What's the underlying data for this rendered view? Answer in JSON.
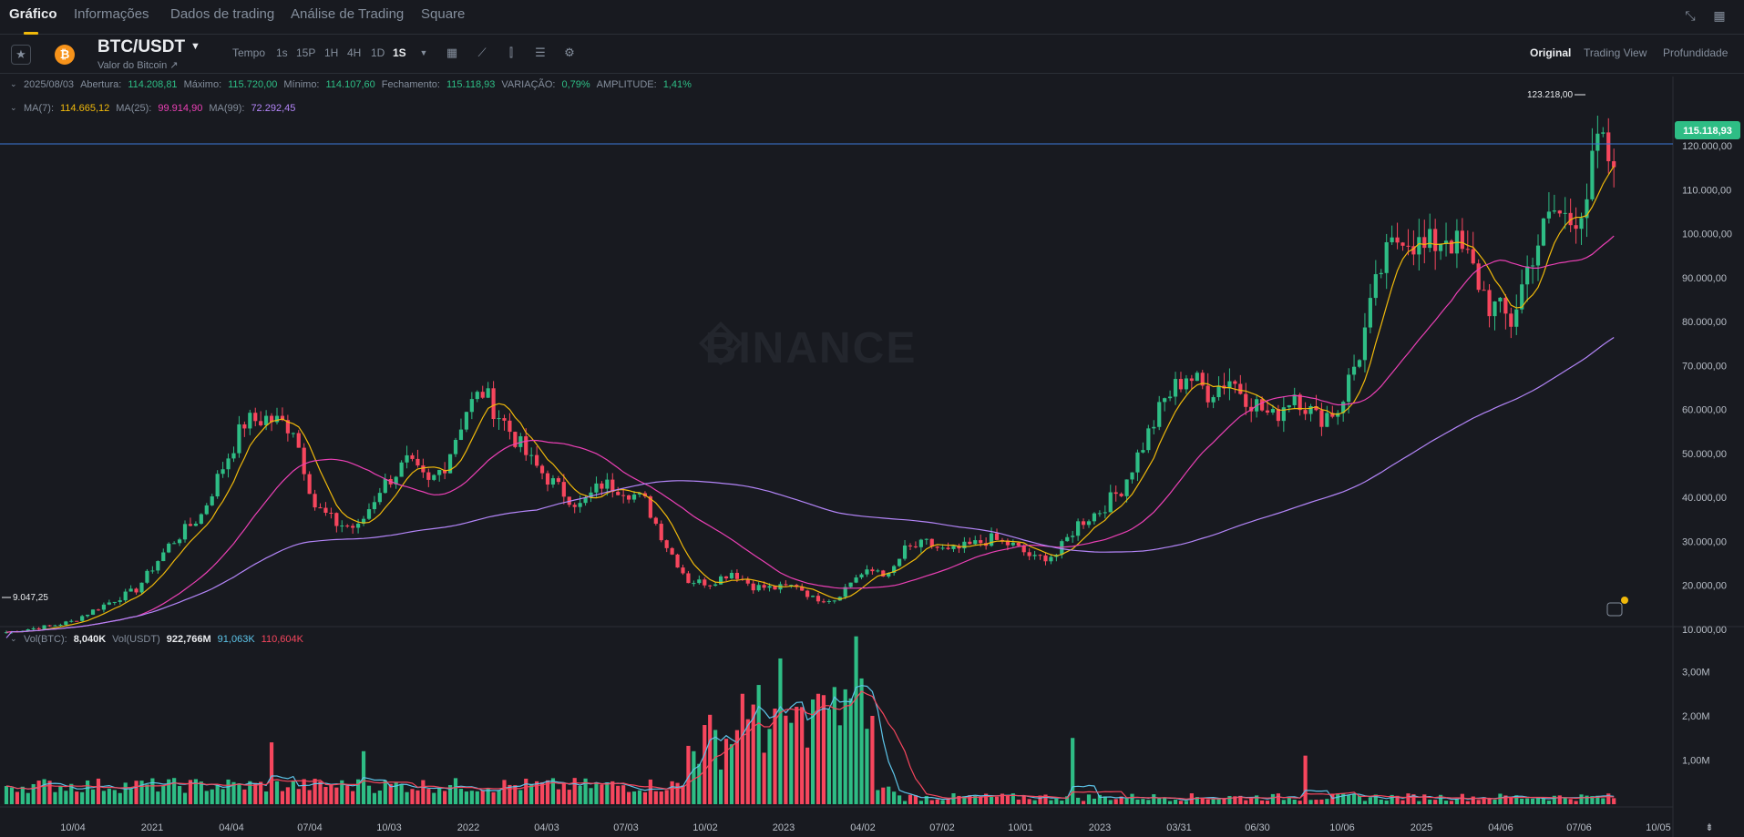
{
  "nav": {
    "tabs": [
      "Gráfico",
      "Informações",
      "Dados de trading",
      "Análise de Trading",
      "Square"
    ],
    "active": "Gráfico"
  },
  "symbol": {
    "pair": "BTC/USDT",
    "subtitle": "Valor do Bitcoin ↗",
    "coin_icon": "bitcoin-icon"
  },
  "toolbar": {
    "time_label": "Tempo",
    "intervals": [
      "1s",
      "15P",
      "1H",
      "4H",
      "1D",
      "1S"
    ],
    "active_interval": "1S",
    "tools": [
      "calendar-icon",
      "indicator-icon",
      "candle-type-icon",
      "layout-icon",
      "settings-icon"
    ],
    "views": [
      "Original",
      "Trading View",
      "Profundidade"
    ],
    "active_view": "Original"
  },
  "ohlc": {
    "date": "2025/08/03",
    "open_label": "Abertura:",
    "open": "114.208,81",
    "high_label": "Máximo:",
    "high": "115.720,00",
    "low_label": "Mínimo:",
    "low": "114.107,60",
    "close_label": "Fechamento:",
    "close": "115.118,93",
    "change_label": "VARIAÇÃO:",
    "change": "0,79%",
    "amp_label": "AMPLITUDE:",
    "amp": "1,41%"
  },
  "ma": {
    "ma7_label": "MA(7):",
    "ma7": "114.665,12",
    "ma25_label": "MA(25):",
    "ma25": "99.914,90",
    "ma99_label": "MA(99):",
    "ma99": "72.292,45"
  },
  "vol_legend": {
    "btc_label": "Vol(BTC):",
    "btc": "8,040K",
    "usdt_label": "Vol(USDT)",
    "usdt": "922,766M",
    "ma1": "91,063K",
    "ma2": "110,604K"
  },
  "watermark": "BINANCE",
  "price_tag": "115.118,93",
  "colors": {
    "up": "#2EBD85",
    "down": "#F6465D",
    "ma7": "#F0B90B",
    "ma25": "#EB40B5",
    "ma99": "#B385F8",
    "vol_ma1": "#5DC4E8",
    "vol_ma2": "#F6465D",
    "price_line": "#3C78D8"
  },
  "chart_data": {
    "type": "candlestick",
    "interval": "1 week",
    "price_axis_ticks": [
      "120.000,00",
      "110.000,00",
      "100.000,00",
      "90.000,00",
      "80.000,00",
      "70.000,00",
      "60.000,00",
      "50.000,00",
      "40.000,00",
      "30.000,00",
      "20.000,00",
      "10.000,00"
    ],
    "price_range": [
      0,
      125000
    ],
    "volume_axis_ticks": [
      "3,00M",
      "2,00M",
      "1,00M"
    ],
    "volume_range": [
      0,
      3900000
    ],
    "x_tick_labels": [
      "10/04",
      "2021",
      "04/04",
      "07/04",
      "10/03",
      "2022",
      "04/03",
      "07/03",
      "10/02",
      "2023",
      "04/02",
      "07/02",
      "10/01",
      "2023",
      "03/31",
      "06/30",
      "10/06",
      "2025",
      "04/06",
      "07/06",
      "10/05"
    ],
    "annotations": {
      "max": "123.218,00",
      "min": "9.047,25"
    },
    "current_price": 115118.93,
    "anchors": [
      [
        0,
        9300
      ],
      [
        8,
        10700
      ],
      [
        12,
        11700
      ],
      [
        18,
        15500
      ],
      [
        24,
        19000
      ],
      [
        30,
        29000
      ],
      [
        36,
        36000
      ],
      [
        40,
        47000
      ],
      [
        44,
        57000
      ],
      [
        48,
        58000
      ],
      [
        53,
        56000
      ],
      [
        57,
        38000
      ],
      [
        61,
        34000
      ],
      [
        65,
        33000
      ],
      [
        69,
        42000
      ],
      [
        74,
        48000
      ],
      [
        78,
        43000
      ],
      [
        81,
        47500
      ],
      [
        85,
        60000
      ],
      [
        88,
        64000
      ],
      [
        92,
        57000
      ],
      [
        97,
        48000
      ],
      [
        102,
        42000
      ],
      [
        106,
        38000
      ],
      [
        110,
        43000
      ],
      [
        114,
        42000
      ],
      [
        118,
        39000
      ],
      [
        122,
        29000
      ],
      [
        126,
        21000
      ],
      [
        130,
        20500
      ],
      [
        134,
        23000
      ],
      [
        138,
        19700
      ],
      [
        142,
        19300
      ],
      [
        146,
        20000
      ],
      [
        149,
        17000
      ],
      [
        153,
        16800
      ],
      [
        157,
        22000
      ],
      [
        161,
        23500
      ],
      [
        163,
        22000
      ],
      [
        166,
        28000
      ],
      [
        170,
        29500
      ],
      [
        174,
        27500
      ],
      [
        178,
        29000
      ],
      [
        182,
        30500
      ],
      [
        186,
        29000
      ],
      [
        190,
        26000
      ],
      [
        194,
        27000
      ],
      [
        198,
        34000
      ],
      [
        202,
        37000
      ],
      [
        206,
        42000
      ],
      [
        210,
        52000
      ],
      [
        214,
        62000
      ],
      [
        218,
        68000
      ],
      [
        222,
        64000
      ],
      [
        226,
        67000
      ],
      [
        230,
        62000
      ],
      [
        234,
        58000
      ],
      [
        238,
        64000
      ],
      [
        242,
        58000
      ],
      [
        246,
        60000
      ],
      [
        250,
        73000
      ],
      [
        254,
        92000
      ],
      [
        258,
        101000
      ],
      [
        262,
        96000
      ],
      [
        266,
        100000
      ],
      [
        270,
        94000
      ],
      [
        274,
        84000
      ],
      [
        278,
        80000
      ],
      [
        282,
        96000
      ],
      [
        286,
        105000
      ],
      [
        289,
        103000
      ],
      [
        292,
        109000
      ],
      [
        294,
        120000
      ],
      [
        296,
        117000
      ],
      [
        297,
        115118.93
      ]
    ],
    "volume_spikes": [
      [
        49,
        1400000
      ],
      [
        66,
        1200000
      ],
      [
        127,
        1200000
      ],
      [
        136,
        2500000
      ],
      [
        139,
        2700000
      ],
      [
        143,
        3300000
      ],
      [
        147,
        2200000
      ],
      [
        150,
        2500000
      ],
      [
        155,
        2600000
      ],
      [
        157,
        3800000
      ],
      [
        160,
        2000000
      ],
      [
        197,
        1500000
      ],
      [
        240,
        1100000
      ]
    ]
  }
}
